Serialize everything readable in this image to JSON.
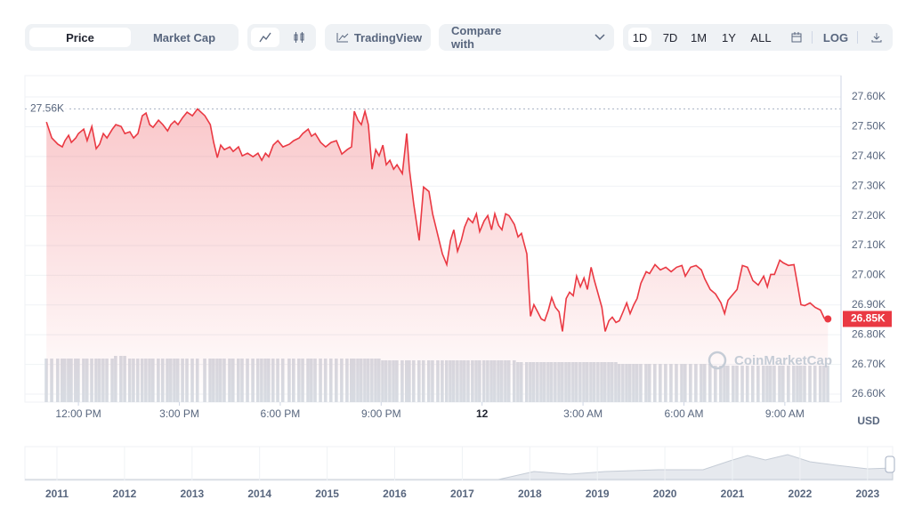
{
  "toolbar": {
    "tabs": [
      "Price",
      "Market Cap"
    ],
    "tradingview": "TradingView",
    "compare": "Compare with",
    "ranges": [
      "1D",
      "7D",
      "1M",
      "1Y",
      "ALL"
    ],
    "log": "LOG"
  },
  "watermark": "CoinMarketCap",
  "chart_data": {
    "type": "line",
    "color": "#ea3943",
    "currency": "USD",
    "xlim": [
      -1.59,
      22.67
    ],
    "xticks": [
      {
        "value": 0,
        "label": "12:00 PM"
      },
      {
        "value": 3,
        "label": "3:00 PM"
      },
      {
        "value": 6,
        "label": "6:00 PM"
      },
      {
        "value": 9,
        "label": "9:00 PM"
      },
      {
        "value": 12,
        "label": "12"
      },
      {
        "value": 15,
        "label": "3:00 AM"
      },
      {
        "value": 18,
        "label": "6:00 AM"
      },
      {
        "value": 21,
        "label": "9:00 AM"
      }
    ],
    "ylim": [
      26573,
      27672
    ],
    "yticks": [
      {
        "value": 26600,
        "label": "26.60K"
      },
      {
        "value": 26700,
        "label": "26.70K"
      },
      {
        "value": 26800,
        "label": "26.80K"
      },
      {
        "value": 26900,
        "label": "26.90K"
      },
      {
        "value": 27000,
        "label": "27.00K"
      },
      {
        "value": 27100,
        "label": "27.10K"
      },
      {
        "value": 27200,
        "label": "27.20K"
      },
      {
        "value": 27300,
        "label": "27.30K"
      },
      {
        "value": 27400,
        "label": "27.40K"
      },
      {
        "value": 27500,
        "label": "27.50K"
      },
      {
        "value": 27600,
        "label": "27.60K"
      }
    ],
    "grid": true,
    "high": 27560,
    "high_label": "27.56K",
    "last_label": "26.85K",
    "x": [
      -0.95,
      -0.79,
      -0.61,
      -0.48,
      -0.4,
      -0.29,
      -0.21,
      -0.08,
      0,
      0.16,
      0.26,
      0.4,
      0.53,
      0.63,
      0.74,
      0.85,
      1.01,
      1.11,
      1.27,
      1.38,
      1.53,
      1.64,
      1.77,
      1.9,
      2.01,
      2.12,
      2.22,
      2.38,
      2.51,
      2.65,
      2.75,
      2.86,
      2.96,
      3.1,
      3.23,
      3.39,
      3.54,
      3.76,
      3.92,
      4.02,
      4.13,
      4.23,
      4.34,
      4.5,
      4.6,
      4.76,
      4.87,
      5.03,
      5.19,
      5.34,
      5.45,
      5.56,
      5.66,
      5.79,
      5.93,
      6.08,
      6.27,
      6.4,
      6.56,
      6.67,
      6.83,
      6.93,
      7.04,
      7.2,
      7.35,
      7.51,
      7.67,
      7.83,
      7.99,
      8.12,
      8.2,
      8.31,
      8.41,
      8.52,
      8.62,
      8.73,
      8.84,
      8.94,
      9.05,
      9.15,
      9.26,
      9.37,
      9.47,
      9.63,
      9.76,
      9.84,
      9.97,
      10.13,
      10.26,
      10.42,
      10.53,
      10.69,
      10.82,
      10.95,
      11.06,
      11.16,
      11.27,
      11.38,
      11.48,
      11.59,
      11.72,
      11.83,
      11.93,
      12.06,
      12.17,
      12.28,
      12.38,
      12.49,
      12.59,
      12.7,
      12.8,
      12.96,
      13.07,
      13.17,
      13.33,
      13.44,
      13.54,
      13.65,
      13.76,
      13.86,
      13.97,
      14.07,
      14.18,
      14.29,
      14.39,
      14.5,
      14.6,
      14.71,
      14.81,
      14.92,
      15.03,
      15.13,
      15.24,
      15.34,
      15.45,
      15.56,
      15.66,
      15.77,
      15.87,
      15.98,
      16.08,
      16.19,
      16.3,
      16.4,
      16.51,
      16.61,
      16.72,
      16.88,
      16.98,
      17.14,
      17.3,
      17.46,
      17.62,
      17.78,
      17.94,
      18.04,
      18.2,
      18.36,
      18.52,
      18.62,
      18.78,
      18.94,
      19.1,
      19.21,
      19.31,
      19.47,
      19.58,
      19.74,
      19.89,
      20.05,
      20.21,
      20.37,
      20.48,
      20.58,
      20.69,
      20.85,
      20.95,
      21.11,
      21.27,
      21.38,
      21.48,
      21.59,
      21.75,
      21.9,
      22.06,
      22.17,
      22.28
    ],
    "values": [
      27516,
      27462,
      27441,
      27432,
      27453,
      27471,
      27447,
      27462,
      27477,
      27492,
      27453,
      27501,
      27426,
      27441,
      27477,
      27462,
      27492,
      27507,
      27501,
      27477,
      27483,
      27462,
      27477,
      27537,
      27546,
      27507,
      27498,
      27522,
      27507,
      27486,
      27507,
      27519,
      27507,
      27531,
      27549,
      27537,
      27560,
      27537,
      27507,
      27447,
      27396,
      27438,
      27423,
      27432,
      27417,
      27432,
      27402,
      27411,
      27399,
      27411,
      27387,
      27411,
      27399,
      27438,
      27453,
      27432,
      27441,
      27453,
      27462,
      27477,
      27492,
      27468,
      27477,
      27447,
      27432,
      27447,
      27453,
      27408,
      27423,
      27432,
      27552,
      27522,
      27507,
      27552,
      27507,
      27357,
      27423,
      27402,
      27438,
      27372,
      27387,
      27357,
      27372,
      27342,
      27477,
      27357,
      27237,
      27117,
      27297,
      27282,
      27207,
      27132,
      27072,
      27036,
      27117,
      27153,
      27081,
      27117,
      27162,
      27192,
      27177,
      27207,
      27147,
      27183,
      27201,
      27153,
      27207,
      27168,
      27153,
      27207,
      27201,
      27171,
      27129,
      27141,
      27072,
      26862,
      26901,
      26877,
      26853,
      26847,
      26883,
      26925,
      26892,
      26877,
      26811,
      26922,
      26943,
      26931,
      26997,
      26961,
      26991,
      26952,
      27027,
      26982,
      26937,
      26892,
      26811,
      26847,
      26859,
      26841,
      26847,
      26877,
      26907,
      26871,
      26901,
      26922,
      26973,
      27012,
      27006,
      27036,
      27018,
      27027,
      27012,
      27027,
      27033,
      26997,
      27027,
      27033,
      27018,
      26988,
      26952,
      26937,
      26907,
      26871,
      26916,
      26937,
      26952,
      27033,
      27027,
      26982,
      26967,
      26997,
      26961,
      27003,
      27003,
      27051,
      27042,
      27033,
      27036,
      26967,
      26901,
      26898,
      26907,
      26892,
      26883,
      26856,
      26853
    ],
    "volume": [
      49,
      49,
      49,
      49,
      49,
      49,
      49,
      49,
      49,
      49,
      49,
      49,
      49,
      49,
      49,
      49,
      49,
      52,
      52,
      52,
      49,
      49,
      49,
      49,
      49,
      49,
      49,
      49,
      49,
      49,
      49,
      49,
      49,
      49,
      49,
      49,
      49,
      49,
      49,
      49,
      49,
      49,
      49,
      49,
      49,
      49,
      49,
      49,
      49,
      49,
      49,
      49,
      49,
      49,
      49,
      49,
      49,
      49,
      49,
      49,
      49,
      49,
      49,
      49,
      49,
      49,
      49,
      49,
      49,
      49,
      49,
      49,
      49,
      49,
      49,
      49,
      49,
      49,
      47,
      47,
      47,
      47,
      47,
      47,
      47,
      47,
      47,
      47,
      47,
      47,
      47,
      47,
      47,
      47,
      47,
      47,
      47,
      47,
      47,
      47,
      47,
      47,
      47,
      47,
      47,
      47,
      47,
      47,
      47,
      47,
      47,
      47,
      45,
      45,
      45,
      45,
      45,
      45,
      45,
      45,
      45,
      45,
      45,
      45,
      45,
      45,
      45,
      45,
      45,
      45,
      45,
      45,
      45,
      45,
      45,
      45,
      45,
      45,
      45,
      45,
      43,
      43,
      43,
      43,
      43,
      43,
      43,
      43,
      43,
      43,
      43,
      43,
      43,
      43,
      43,
      43,
      43,
      43,
      43,
      43,
      43,
      41,
      41,
      41,
      41,
      41,
      41,
      41,
      41,
      41,
      41,
      41,
      41,
      41,
      41,
      41,
      41,
      41,
      41,
      41,
      41,
      41,
      41,
      41,
      41,
      41,
      41
    ]
  },
  "navigator": {
    "years": [
      "2011",
      "2012",
      "2013",
      "2014",
      "2015",
      "2016",
      "2017",
      "2018",
      "2019",
      "2020",
      "2021",
      "2022",
      "2023"
    ]
  }
}
